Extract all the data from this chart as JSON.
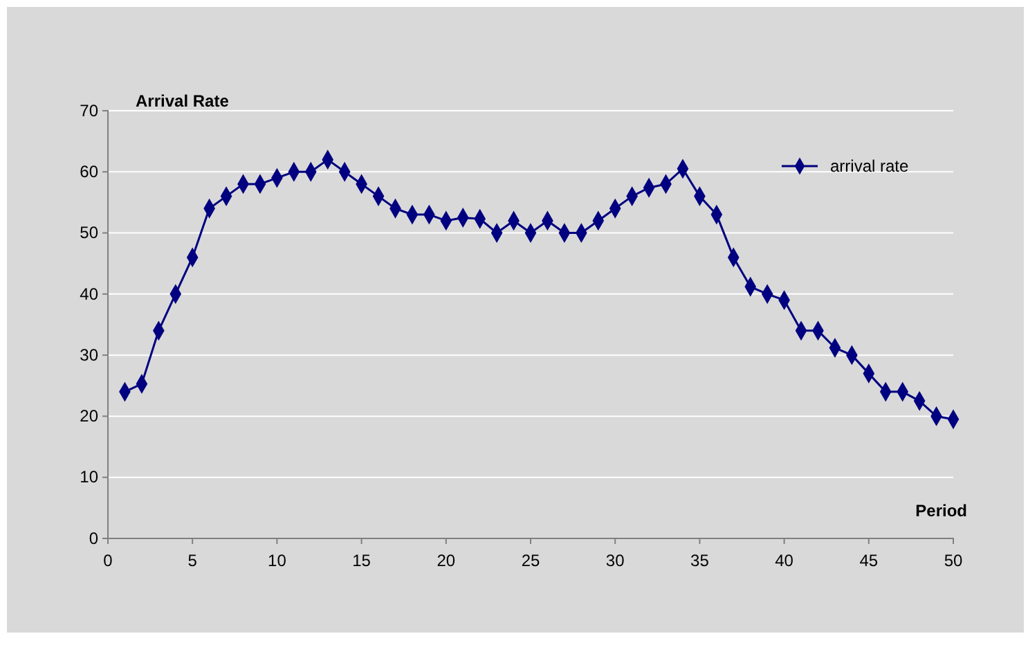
{
  "chart_data": {
    "type": "line",
    "xlabel": "Period",
    "ylabel": "Arrival Rate",
    "x": [
      1,
      2,
      3,
      4,
      5,
      6,
      7,
      8,
      9,
      10,
      11,
      12,
      13,
      14,
      15,
      16,
      17,
      18,
      19,
      20,
      21,
      22,
      23,
      24,
      25,
      26,
      27,
      28,
      29,
      30,
      31,
      32,
      33,
      34,
      35,
      36,
      37,
      38,
      39,
      40,
      41,
      42,
      43,
      44,
      45,
      46,
      47,
      48,
      49,
      50
    ],
    "series": [
      {
        "name": "arrival rate",
        "color": "#000080",
        "values": [
          24,
          25.3,
          34,
          40,
          46,
          54,
          56,
          58,
          58,
          59,
          60,
          60,
          62,
          60,
          58,
          56,
          54,
          53,
          53,
          52,
          52.5,
          52.3,
          50,
          52,
          50,
          52,
          50,
          50,
          52,
          54,
          56,
          57.4,
          58,
          60.5,
          56,
          53,
          46,
          41.2,
          40,
          39,
          34,
          34,
          31.2,
          30,
          27,
          24,
          24,
          22.5,
          20,
          19.5
        ]
      }
    ],
    "xlim": [
      0,
      50
    ],
    "xticks": [
      0,
      5,
      10,
      15,
      20,
      25,
      30,
      35,
      40,
      45,
      50
    ],
    "ylim": [
      0,
      70
    ],
    "yticks": [
      0,
      10,
      20,
      30,
      40,
      50,
      60,
      70
    ],
    "grid": "y",
    "legend": "top right",
    "marker": "diamond",
    "line_style": "solid"
  }
}
